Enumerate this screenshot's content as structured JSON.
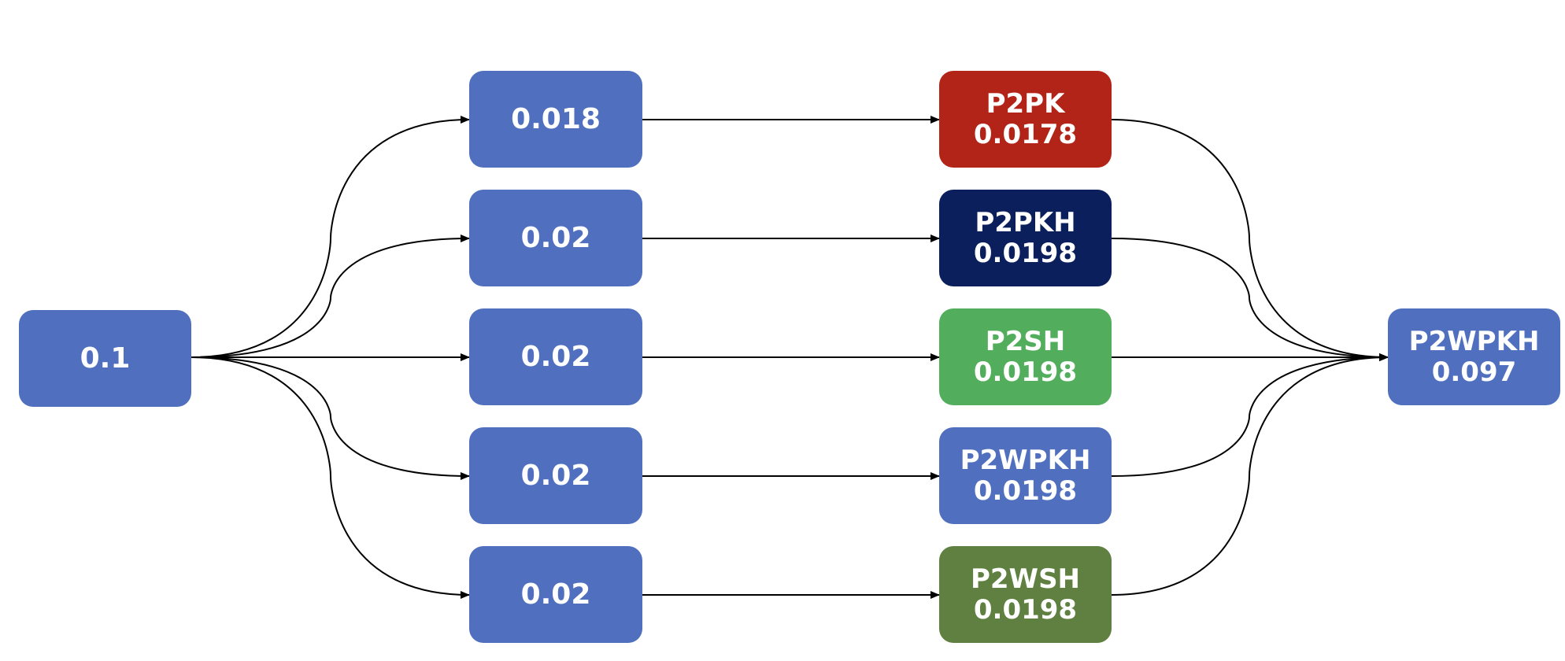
{
  "source": {
    "label": "0.1",
    "color": "#5070bf"
  },
  "splits": [
    {
      "label": "0.018",
      "color": "#5070bf"
    },
    {
      "label": "0.02",
      "color": "#5070bf"
    },
    {
      "label": "0.02",
      "color": "#5070bf"
    },
    {
      "label": "0.02",
      "color": "#5070bf"
    },
    {
      "label": "0.02",
      "color": "#5070bf"
    }
  ],
  "outputs": [
    {
      "type": "P2PK",
      "value": "0.0178",
      "color": "#b22418"
    },
    {
      "type": "P2PKH",
      "value": "0.0198",
      "color": "#0a1f5c"
    },
    {
      "type": "P2SH",
      "value": "0.0198",
      "color": "#52ae5c"
    },
    {
      "type": "P2WPKH",
      "value": "0.0198",
      "color": "#5070bf"
    },
    {
      "type": "P2WSH",
      "value": "0.0198",
      "color": "#5f8040"
    }
  ],
  "target": {
    "type": "P2WPKH",
    "value": "0.097",
    "color": "#5070bf"
  },
  "edge_color": "#000000"
}
